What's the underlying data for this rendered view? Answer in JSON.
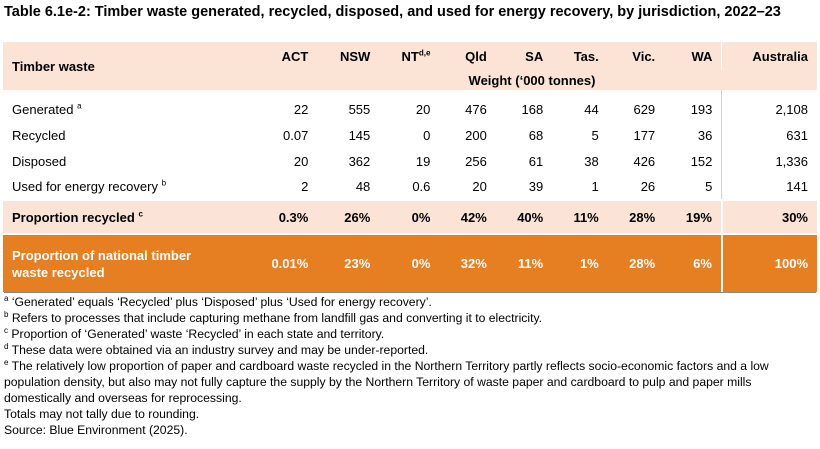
{
  "title": "Table 6.1e-2: Timber waste generated, recycled, disposed, and used for energy recovery, by jurisdiction, 2022–23",
  "table": {
    "row_header": "Timber waste",
    "columns": [
      {
        "label": "ACT",
        "sup": ""
      },
      {
        "label": "NSW",
        "sup": ""
      },
      {
        "label": "NT",
        "sup": "d,e"
      },
      {
        "label": "Qld",
        "sup": ""
      },
      {
        "label": "SA",
        "sup": ""
      },
      {
        "label": "Tas.",
        "sup": ""
      },
      {
        "label": "Vic.",
        "sup": ""
      },
      {
        "label": "WA",
        "sup": ""
      },
      {
        "label": "Australia",
        "sup": ""
      }
    ],
    "unit_label": "Weight (‘000 tonnes)",
    "rows": [
      {
        "label": "Generated",
        "sup": "a",
        "values": [
          "22",
          "555",
          "20",
          "476",
          "168",
          "44",
          "629",
          "193",
          "2,108"
        ]
      },
      {
        "label": "Recycled",
        "sup": "",
        "values": [
          "0.07",
          "145",
          "0",
          "200",
          "68",
          "5",
          "177",
          "36",
          "631"
        ]
      },
      {
        "label": "Disposed",
        "sup": "",
        "values": [
          "20",
          "362",
          "19",
          "256",
          "61",
          "38",
          "426",
          "152",
          "1,336"
        ]
      },
      {
        "label": "Used for energy recovery",
        "sup": "b",
        "values": [
          "2",
          "48",
          "0.6",
          "20",
          "39",
          "1",
          "26",
          "5",
          "141"
        ]
      }
    ],
    "proportion_recycled": {
      "label": "Proportion recycled",
      "sup": "c",
      "values": [
        "0.3%",
        "26%",
        "0%",
        "42%",
        "40%",
        "11%",
        "28%",
        "19%",
        "30%"
      ]
    },
    "national_proportion": {
      "label_line1": "Proportion of national timber",
      "label_line2": "waste recycled",
      "values": [
        "0.01%",
        "23%",
        "0%",
        "32%",
        "11%",
        "1%",
        "28%",
        "6%",
        "100%"
      ]
    }
  },
  "notes": [
    {
      "sup": "a",
      "text": "‘Generated’ equals ‘Recycled’ plus ‘Disposed’ plus ‘Used for energy recovery’."
    },
    {
      "sup": "b",
      "text": "Refers to processes that include capturing methane from landfill gas and converting it to electricity."
    },
    {
      "sup": "c",
      "text": "Proportion of ‘Generated’ waste ‘Recycled’ in each state and territory."
    },
    {
      "sup": "d",
      "text": "These data were obtained via an industry survey and may be under-reported."
    },
    {
      "sup": "e",
      "text": "The relatively low proportion of paper and cardboard waste recycled in the Northern Territory partly reflects socio-economic factors and a low population density, but also may not fully capture the supply by the Northern Territory of waste paper and cardboard to pulp and paper mills domestically and overseas for reprocessing."
    }
  ],
  "rounding_note": "Totals may not tally due to rounding.",
  "source": "Source: Blue Environment (2025).",
  "colors": {
    "header_bg": "#fbe4d5",
    "highlight_bg": "#e67e22",
    "highlight_text": "#ffffff"
  }
}
